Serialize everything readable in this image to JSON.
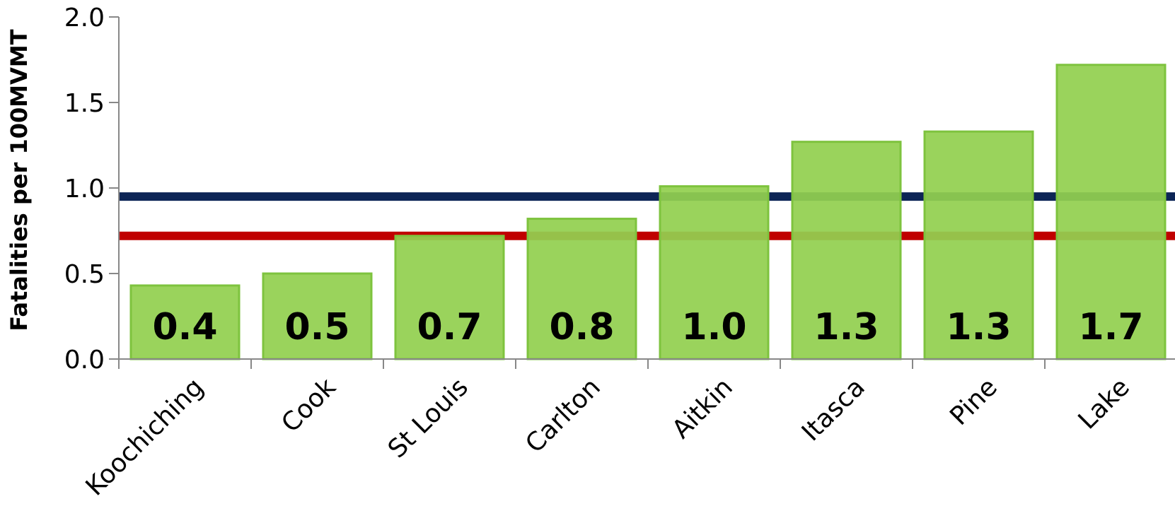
{
  "chart_data": {
    "type": "bar",
    "title": "",
    "xlabel": "",
    "ylabel": "Fatalities per 100MVMT",
    "categories": [
      "Koochiching",
      "Cook",
      "St Louis",
      "Carlton",
      "Aitkin",
      "Itasca",
      "Pine",
      "Lake"
    ],
    "values": [
      0.43,
      0.5,
      0.72,
      0.82,
      1.01,
      1.27,
      1.33,
      1.72
    ],
    "data_labels": [
      "0.4",
      "0.5",
      "0.7",
      "0.8",
      "1.0",
      "1.3",
      "1.3",
      "1.7"
    ],
    "y_ticks": [
      0.0,
      0.5,
      1.0,
      1.5,
      2.0
    ],
    "y_tick_labels": [
      "0.0",
      "0.5",
      "1.0",
      "1.5",
      "2.0"
    ],
    "ylim": [
      0,
      2.0
    ],
    "grid": false,
    "reference_lines": [
      {
        "value": 0.95,
        "color": "#0d2556"
      },
      {
        "value": 0.72,
        "color": "#c00000"
      }
    ],
    "colors": {
      "bar_fill": "#92d050",
      "bar_stroke": "#7ec33e",
      "axis": "#888888",
      "text": "#000000"
    }
  }
}
